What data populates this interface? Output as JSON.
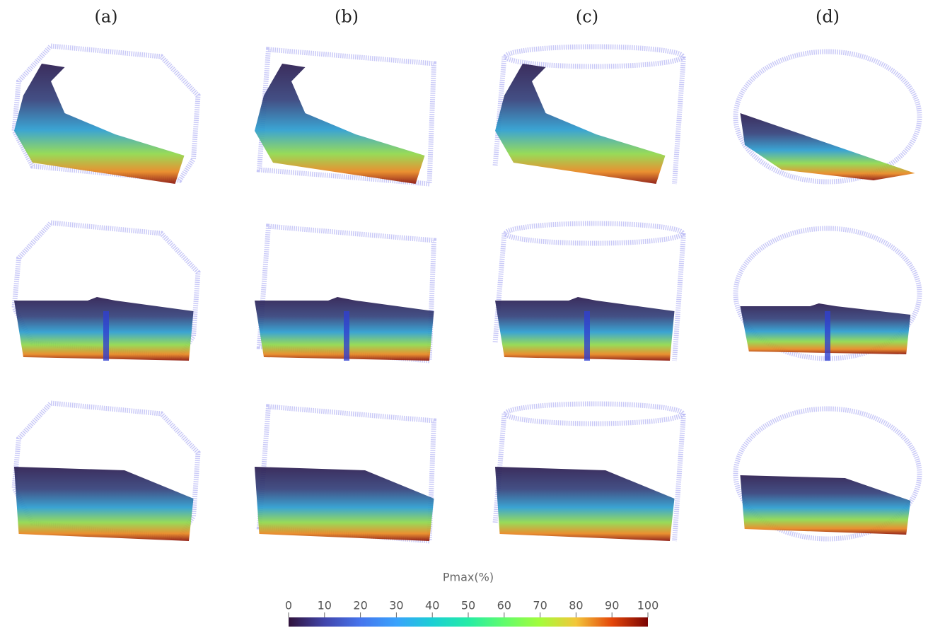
{
  "columns": [
    "(a)",
    "(b)",
    "(c)",
    "(d)"
  ],
  "colorbar": {
    "title": "Pmax(%)",
    "lim": [
      0,
      100
    ],
    "ticks": [
      0,
      10,
      20,
      30,
      40,
      50,
      60,
      70,
      80,
      90,
      100
    ]
  }
}
